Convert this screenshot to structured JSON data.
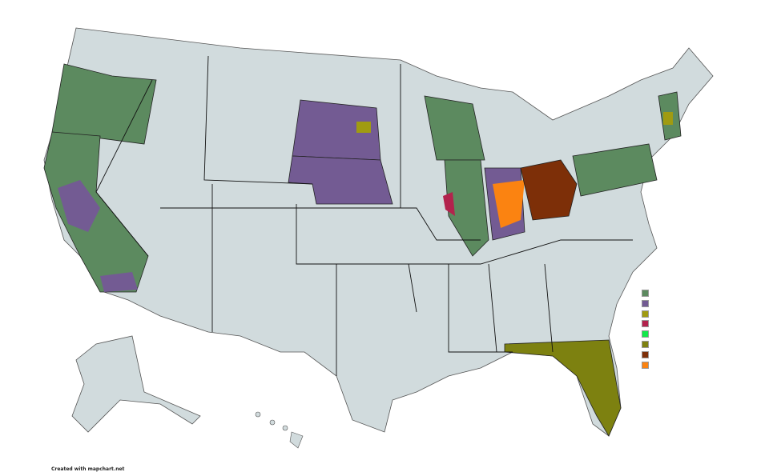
{
  "credit": "Created with mapchart.net",
  "colors": {
    "base": "#d1dbdd",
    "border": "#555555",
    "state_border": "#111111"
  },
  "legend": [
    {
      "color": "#5c8a5f"
    },
    {
      "color": "#735b93"
    },
    {
      "color": "#a09b11"
    },
    {
      "color": "#b3234d"
    },
    {
      "color": "#12e94a"
    },
    {
      "color": "#7d8110"
    },
    {
      "color": "#7d2f08"
    },
    {
      "color": "#fb8311"
    }
  ],
  "regions": [
    {
      "name": "Oregon",
      "color": "#5c8a5f"
    },
    {
      "name": "California",
      "color": "#5c8a5f"
    },
    {
      "name": "South Dakota",
      "color": "#735b93"
    },
    {
      "name": "Nebraska",
      "color": "#735b93"
    },
    {
      "name": "Wisconsin",
      "color": "#5c8a5f"
    },
    {
      "name": "Illinois",
      "color": "#5c8a5f"
    },
    {
      "name": "Indiana",
      "color": "#735b93"
    },
    {
      "name": "Ohio",
      "color": "#7d2f08"
    },
    {
      "name": "Pennsylvania",
      "color": "#5c8a5f"
    },
    {
      "name": "New Hampshire",
      "color": "#5c8a5f"
    },
    {
      "name": "Florida",
      "color": "#7d8110"
    }
  ]
}
